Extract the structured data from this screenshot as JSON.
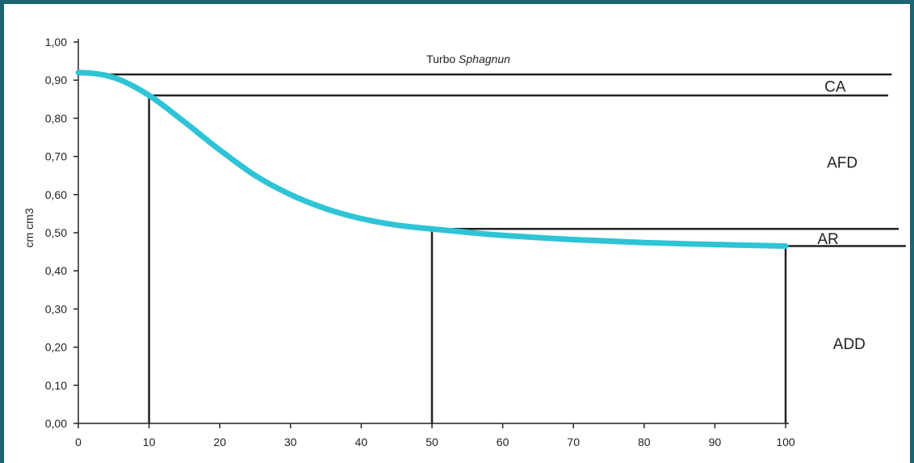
{
  "chart_data": {
    "type": "line",
    "title": "Turbo",
    "title_italic": "Sphagnun",
    "xlabel": "",
    "ylabel": "cm cm3",
    "xlim": [
      0,
      100
    ],
    "ylim": [
      0,
      1.0
    ],
    "x_ticks": [
      0,
      10,
      20,
      30,
      40,
      50,
      60,
      70,
      80,
      90,
      100
    ],
    "x_tick_labels": [
      "0",
      "10",
      "20",
      "30",
      "40",
      "50",
      "60",
      "70",
      "80",
      "90",
      "100"
    ],
    "y_ticks": [
      0,
      0.1,
      0.2,
      0.3,
      0.4,
      0.5,
      0.6,
      0.7,
      0.8,
      0.9,
      1.0
    ],
    "y_tick_labels": [
      "0,00",
      "0,10",
      "0,20",
      "0,30",
      "0,40",
      "0,50",
      "0,60",
      "0,70",
      "0,80",
      "0,90",
      "1,00"
    ],
    "grid": false,
    "series": [
      {
        "color": "#2ec4d6",
        "x": [
          0,
          2,
          4,
          6,
          8,
          10,
          12,
          14,
          16,
          18,
          20,
          25,
          30,
          35,
          40,
          45,
          50,
          55,
          60,
          70,
          80,
          90,
          100
        ],
        "y": [
          0.92,
          0.918,
          0.912,
          0.9,
          0.882,
          0.86,
          0.834,
          0.805,
          0.776,
          0.746,
          0.717,
          0.65,
          0.6,
          0.563,
          0.537,
          0.52,
          0.51,
          0.501,
          0.493,
          0.482,
          0.474,
          0.469,
          0.465
        ]
      }
    ],
    "reference_lines": [
      {
        "kind": "horizontal",
        "y": 0.915,
        "x_from": 0,
        "x_to": 115
      },
      {
        "kind": "horizontal",
        "y": 0.86,
        "x_from": 10,
        "x_to": 114.5
      },
      {
        "kind": "horizontal",
        "y": 0.51,
        "x_from": 50,
        "x_to": 116
      },
      {
        "kind": "horizontal",
        "y": 0.465,
        "x_from": 100,
        "x_to": 117
      },
      {
        "kind": "vertical",
        "x": 10,
        "y_from": 0,
        "y_to": 0.86
      },
      {
        "kind": "vertical",
        "x": 50,
        "y_from": 0,
        "y_to": 0.51
      },
      {
        "kind": "vertical",
        "x": 100,
        "y_from": 0,
        "y_to": 0.465
      }
    ],
    "region_labels": [
      {
        "text": "CA",
        "x": 107,
        "y": 0.885
      },
      {
        "text": "AFD",
        "x": 108,
        "y": 0.685
      },
      {
        "text": "AR",
        "x": 106,
        "y": 0.485
      },
      {
        "text": "ADD",
        "x": 109,
        "y": 0.21
      }
    ]
  }
}
